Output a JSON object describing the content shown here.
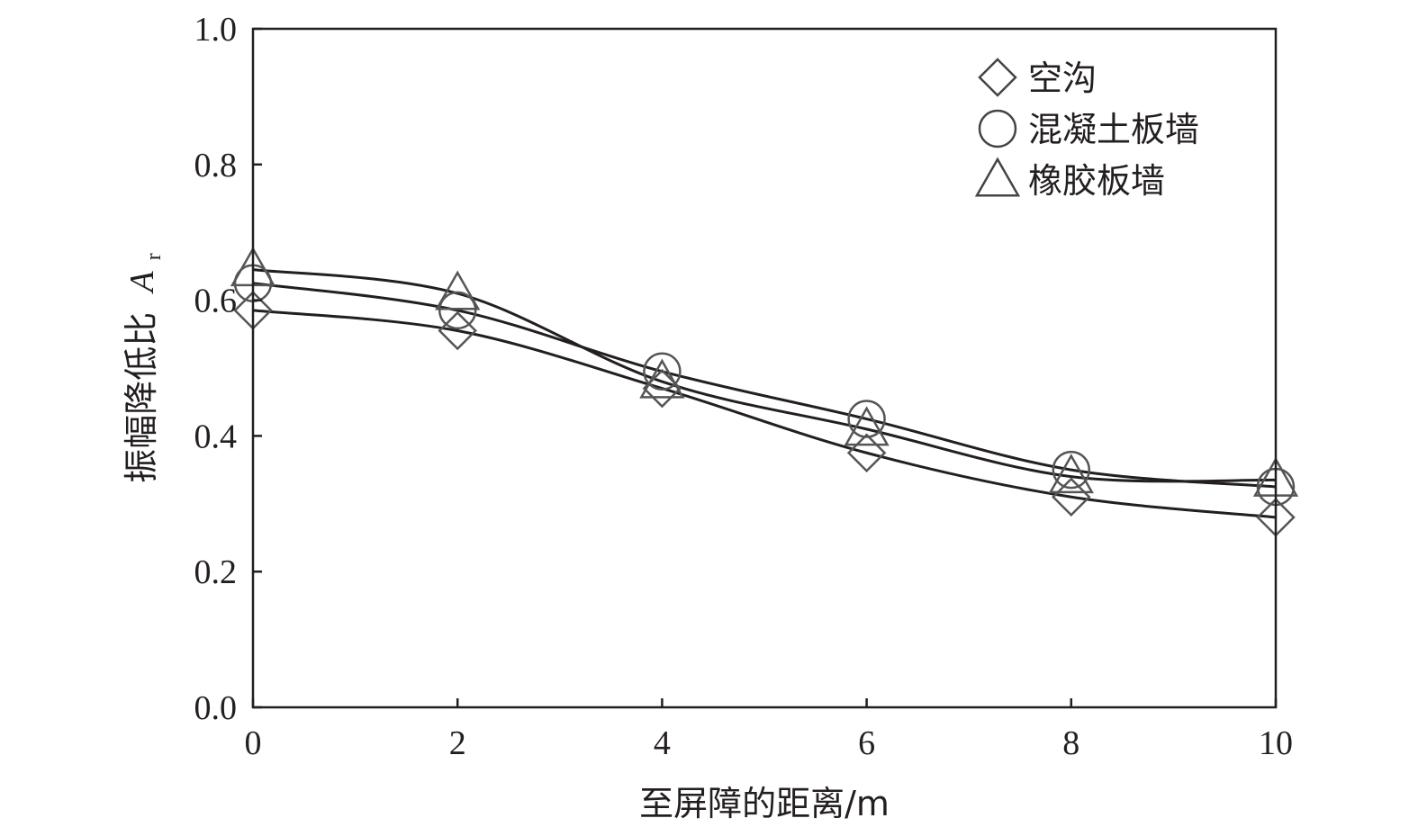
{
  "chart_data": {
    "type": "line",
    "xlabel": "至屏障的距离/m",
    "ylabel": "振幅降低比",
    "ylabel_symbol": "A",
    "ylabel_subscript": "r",
    "xlim": [
      0,
      10
    ],
    "ylim": [
      0,
      1.0
    ],
    "x_ticks": [
      0,
      2,
      4,
      6,
      8,
      10
    ],
    "x_tick_labels": [
      "0",
      "2",
      "4",
      "6",
      "8",
      "10"
    ],
    "y_ticks": [
      0,
      0.2,
      0.4,
      0.6,
      0.8,
      1.0
    ],
    "y_tick_labels": [
      "0.0",
      "0.2",
      "0.4",
      "0.6",
      "0.8",
      "1.0"
    ],
    "grid": false,
    "legend_position": "top-right",
    "x": [
      0,
      2,
      4,
      6,
      8,
      10
    ],
    "series": [
      {
        "name": "空沟",
        "marker": "diamond",
        "values": [
          0.585,
          0.555,
          0.47,
          0.375,
          0.31,
          0.28
        ]
      },
      {
        "name": "混凝土板墙",
        "marker": "circle",
        "values": [
          0.625,
          0.585,
          0.495,
          0.425,
          0.35,
          0.325
        ]
      },
      {
        "name": "橡胶板墙",
        "marker": "triangle",
        "values": [
          0.645,
          0.61,
          0.48,
          0.41,
          0.34,
          0.335
        ]
      }
    ]
  }
}
